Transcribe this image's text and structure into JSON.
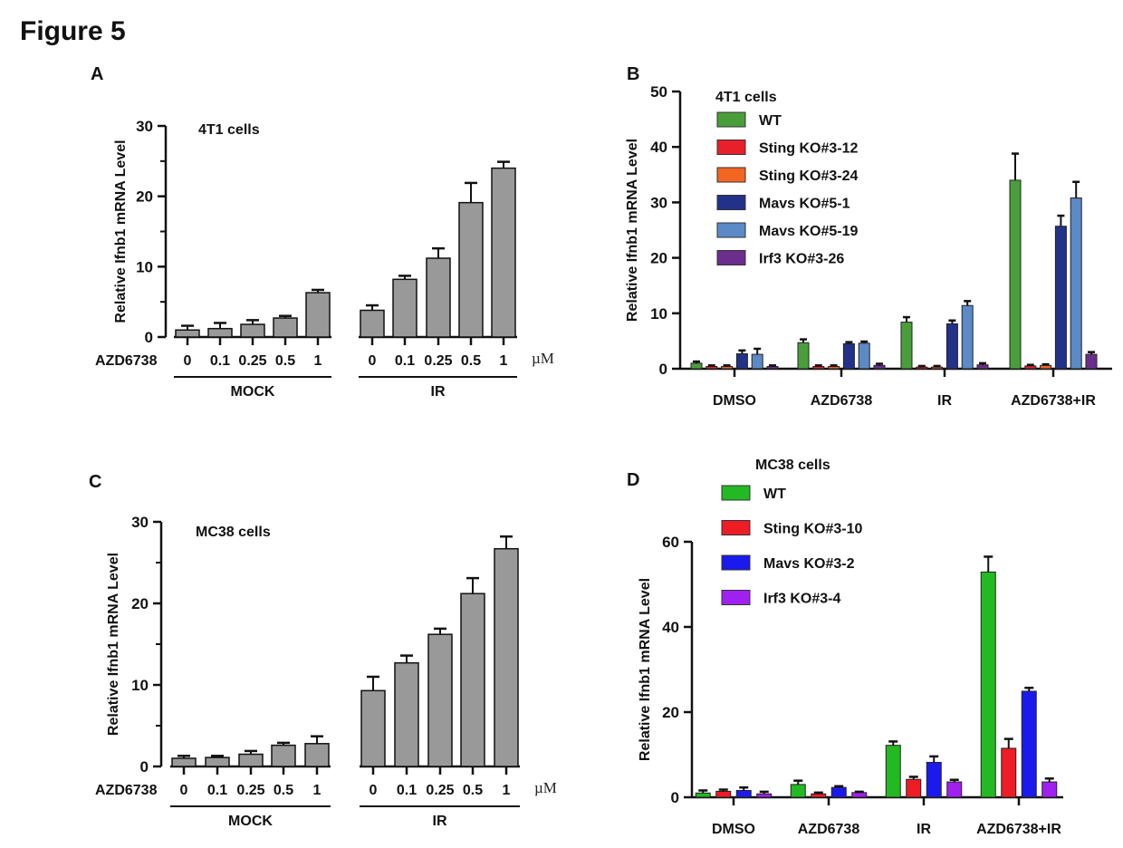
{
  "figure_title": "Figure 5",
  "chart_data": [
    {
      "panel": "A",
      "type": "bar",
      "title": "4T1 cells",
      "ylabel": "Relative Ifnb1 mRNA Level",
      "xlabel": "",
      "ylim": [
        0,
        30
      ],
      "yticks": [
        0,
        10,
        20,
        30
      ],
      "row_label": "AZD6738",
      "unit": "µM",
      "groups": [
        {
          "name": "MOCK",
          "categories": [
            "0",
            "0.1",
            "0.25",
            "0.5",
            "1"
          ],
          "values": [
            1.0,
            1.2,
            1.8,
            2.7,
            6.3
          ],
          "errors": [
            0.6,
            0.8,
            0.6,
            0.3,
            0.4
          ]
        },
        {
          "name": "IR",
          "categories": [
            "0",
            "0.1",
            "0.25",
            "0.5",
            "1"
          ],
          "values": [
            3.8,
            8.2,
            11.2,
            19.1,
            24.0
          ],
          "errors": [
            0.7,
            0.5,
            1.4,
            2.8,
            0.9
          ]
        }
      ],
      "bar_color": "#999999"
    },
    {
      "panel": "B",
      "type": "bar",
      "title": "4T1 cells",
      "ylabel": "Relative Ifnb1 mRNA Level",
      "xlabel": "",
      "ylim": [
        0,
        50
      ],
      "yticks": [
        0,
        10,
        20,
        30,
        40,
        50
      ],
      "legend_position": "top-left",
      "categories": [
        "DMSO",
        "AZD6738",
        "IR",
        "AZD6738+IR"
      ],
      "series": [
        {
          "name": "WT",
          "color": "#4a9e3a",
          "values": [
            1.0,
            4.7,
            8.4,
            34.0
          ],
          "errors": [
            0.3,
            0.6,
            0.9,
            4.8
          ]
        },
        {
          "name": "Sting KO#3-12",
          "color": "#e8202c",
          "values": [
            0.4,
            0.4,
            0.3,
            0.5
          ],
          "errors": [
            0.2,
            0.2,
            0.2,
            0.2
          ]
        },
        {
          "name": "Sting KO#3-24",
          "color": "#f26522",
          "values": [
            0.4,
            0.4,
            0.3,
            0.6
          ],
          "errors": [
            0.2,
            0.2,
            0.2,
            0.2
          ]
        },
        {
          "name": "Mavs KO#5-1",
          "color": "#22318a",
          "values": [
            2.7,
            4.5,
            8.1,
            25.7
          ],
          "errors": [
            0.6,
            0.3,
            0.6,
            1.9
          ]
        },
        {
          "name": "Mavs KO#5-19",
          "color": "#5b8ac6",
          "values": [
            2.6,
            4.6,
            11.4,
            30.8
          ],
          "errors": [
            1.0,
            0.3,
            0.8,
            2.9
          ]
        },
        {
          "name": "Irf3 KO#3-26",
          "color": "#6b2d8e",
          "values": [
            0.4,
            0.6,
            0.7,
            2.6
          ],
          "errors": [
            0.2,
            0.3,
            0.3,
            0.4
          ]
        }
      ]
    },
    {
      "panel": "C",
      "type": "bar",
      "title": "MC38 cells",
      "ylabel": "Relative Ifnb1 mRNA Level",
      "xlabel": "",
      "ylim": [
        0,
        30
      ],
      "yticks": [
        0,
        10,
        20,
        30
      ],
      "row_label": "AZD6738",
      "unit": "µM",
      "groups": [
        {
          "name": "MOCK",
          "categories": [
            "0",
            "0.1",
            "0.25",
            "0.5",
            "1"
          ],
          "values": [
            1.0,
            1.1,
            1.5,
            2.6,
            2.8
          ],
          "errors": [
            0.3,
            0.2,
            0.4,
            0.3,
            0.9
          ]
        },
        {
          "name": "IR",
          "categories": [
            "0",
            "0.1",
            "0.25",
            "0.5",
            "1"
          ],
          "values": [
            9.3,
            12.7,
            16.2,
            21.2,
            26.7
          ],
          "errors": [
            1.7,
            0.9,
            0.7,
            1.9,
            1.5
          ]
        }
      ],
      "bar_color": "#999999"
    },
    {
      "panel": "D",
      "type": "bar",
      "title": "MC38 cells",
      "ylabel": "Relative Ifnb1 mRNA Level",
      "xlabel": "",
      "ylim": [
        0,
        60
      ],
      "yticks": [
        0,
        20,
        40,
        60
      ],
      "legend_position": "top-left",
      "categories": [
        "DMSO",
        "AZD6738",
        "IR",
        "AZD6738+IR"
      ],
      "series": [
        {
          "name": "WT",
          "color": "#22b922",
          "values": [
            1.0,
            3.0,
            12.2,
            52.9
          ],
          "errors": [
            0.6,
            0.9,
            0.9,
            3.6
          ]
        },
        {
          "name": "Sting KO#3-10",
          "color": "#ee1c24",
          "values": [
            1.4,
            0.8,
            4.2,
            11.5
          ],
          "errors": [
            0.4,
            0.3,
            0.6,
            2.2
          ]
        },
        {
          "name": "Mavs KO#3-2",
          "color": "#1a1aee",
          "values": [
            1.6,
            2.3,
            8.2,
            24.9
          ],
          "errors": [
            0.7,
            0.3,
            1.4,
            0.8
          ]
        },
        {
          "name": "Irf3 KO#3-4",
          "color": "#a020f0",
          "values": [
            0.8,
            1.1,
            3.6,
            3.6
          ],
          "errors": [
            0.5,
            0.2,
            0.5,
            0.8
          ]
        }
      ]
    }
  ]
}
